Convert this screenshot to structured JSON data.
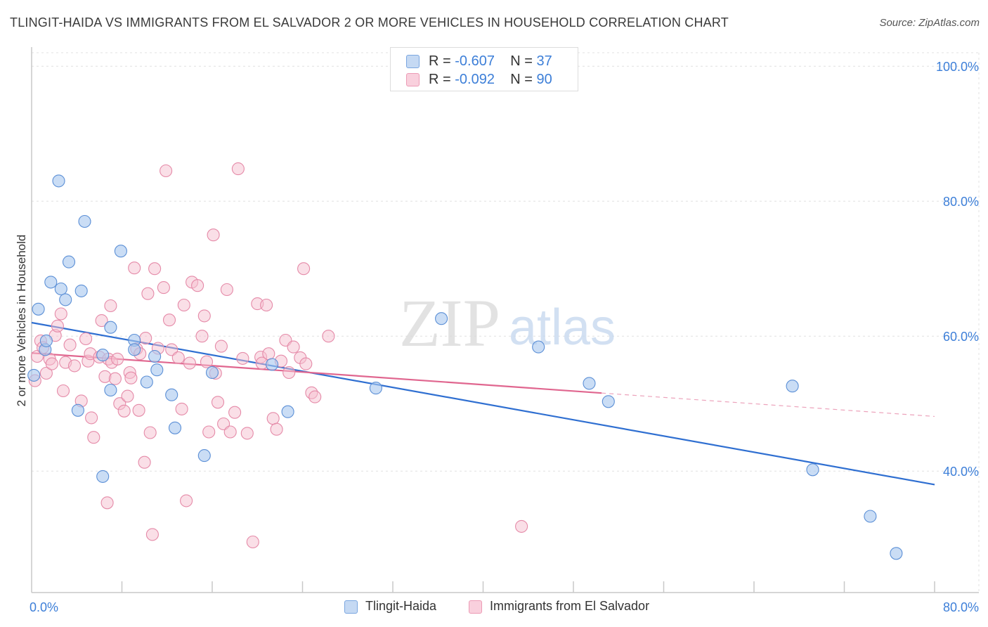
{
  "title": "TLINGIT-HAIDA VS IMMIGRANTS FROM EL SALVADOR 2 OR MORE VEHICLES IN HOUSEHOLD CORRELATION CHART",
  "source": "Source: ZipAtlas.com",
  "watermark": {
    "zip": "ZIP",
    "atlas": "atlas"
  },
  "legend": {
    "r_label": "R =",
    "n_label": "N =",
    "rows": [
      {
        "name": "Tlingit-Haida",
        "r": "-0.607",
        "n": "37"
      },
      {
        "name": "Immigrants from El Salvador",
        "r": "-0.092",
        "n": "90"
      }
    ]
  },
  "colors": {
    "blue_fill": "#a9c8ef",
    "blue_stroke": "#5b8fd6",
    "blue_line": "#2f6fd1",
    "pink_fill": "#f6bfd0",
    "pink_stroke": "#e58aa8",
    "pink_line": "#e0668f",
    "tick_label": "#3d7fd8"
  },
  "chart_data": {
    "type": "scatter",
    "title": "TLINGIT-HAIDA VS IMMIGRANTS FROM EL SALVADOR 2 OR MORE VEHICLES IN HOUSEHOLD CORRELATION CHART",
    "xlabel": "",
    "ylabel": "2 or more Vehicles in Household",
    "xlim": [
      0,
      80
    ],
    "ylim": [
      22,
      102
    ],
    "x_tick_labels": [
      {
        "value": 0,
        "label": "0.0%"
      },
      {
        "value": 80,
        "label": "80.0%"
      }
    ],
    "x_minor_ticks": [
      8,
      16,
      24,
      32,
      40,
      48,
      56,
      64,
      72,
      80
    ],
    "y_ticks": [
      {
        "value": 100,
        "label": "100.0%"
      },
      {
        "value": 80,
        "label": "80.0%"
      },
      {
        "value": 60,
        "label": "60.0%"
      },
      {
        "value": 40,
        "label": "40.0%"
      }
    ],
    "series": [
      {
        "name": "Tlingit-Haida",
        "color": "blue",
        "r": -0.607,
        "n": 37,
        "trend": {
          "x0": 0,
          "y0": 62.0,
          "x1": 80,
          "y1": 38.0,
          "solid_to": 80
        },
        "points": [
          [
            0.2,
            54.2
          ],
          [
            0.6,
            64.0
          ],
          [
            1.2,
            58.0
          ],
          [
            1.3,
            59.3
          ],
          [
            1.7,
            68.0
          ],
          [
            2.4,
            83.0
          ],
          [
            2.6,
            67.0
          ],
          [
            3.0,
            65.4
          ],
          [
            3.3,
            71.0
          ],
          [
            4.1,
            49.0
          ],
          [
            4.4,
            66.7
          ],
          [
            4.7,
            77.0
          ],
          [
            6.3,
            57.2
          ],
          [
            6.3,
            39.2
          ],
          [
            7.0,
            52.0
          ],
          [
            7.0,
            61.3
          ],
          [
            7.9,
            72.6
          ],
          [
            9.1,
            59.4
          ],
          [
            9.1,
            58.0
          ],
          [
            10.2,
            53.2
          ],
          [
            10.9,
            57.0
          ],
          [
            11.1,
            55.0
          ],
          [
            12.4,
            51.3
          ],
          [
            12.7,
            46.4
          ],
          [
            15.3,
            42.3
          ],
          [
            16.0,
            54.6
          ],
          [
            21.3,
            55.8
          ],
          [
            22.7,
            48.8
          ],
          [
            30.5,
            52.3
          ],
          [
            36.3,
            62.6
          ],
          [
            44.9,
            58.4
          ],
          [
            49.4,
            53.0
          ],
          [
            51.1,
            50.3
          ],
          [
            67.4,
            52.6
          ],
          [
            69.2,
            40.2
          ],
          [
            74.3,
            33.3
          ],
          [
            76.6,
            27.8
          ]
        ]
      },
      {
        "name": "Immigrants from El Salvador",
        "color": "pink",
        "r": -0.092,
        "n": 90,
        "trend": {
          "x0": 0,
          "y0": 57.5,
          "x1": 80,
          "y1": 48.1,
          "solid_to": 50.5
        },
        "points": [
          [
            0.3,
            53.4
          ],
          [
            0.5,
            57.0
          ],
          [
            0.8,
            59.3
          ],
          [
            1.0,
            58.3
          ],
          [
            1.3,
            54.5
          ],
          [
            1.6,
            56.6
          ],
          [
            1.8,
            55.9
          ],
          [
            2.1,
            60.1
          ],
          [
            2.3,
            61.5
          ],
          [
            2.6,
            63.3
          ],
          [
            2.8,
            51.9
          ],
          [
            3.0,
            56.1
          ],
          [
            3.4,
            58.7
          ],
          [
            3.8,
            55.6
          ],
          [
            4.4,
            50.4
          ],
          [
            4.8,
            59.6
          ],
          [
            5.0,
            56.3
          ],
          [
            5.2,
            57.4
          ],
          [
            5.3,
            47.9
          ],
          [
            5.5,
            45.0
          ],
          [
            6.0,
            56.9
          ],
          [
            6.2,
            62.3
          ],
          [
            6.5,
            54.0
          ],
          [
            6.7,
            35.3
          ],
          [
            6.8,
            56.6
          ],
          [
            7.0,
            64.5
          ],
          [
            7.1,
            56.1
          ],
          [
            7.4,
            53.7
          ],
          [
            7.6,
            56.6
          ],
          [
            7.8,
            50.0
          ],
          [
            8.2,
            48.9
          ],
          [
            8.5,
            51.1
          ],
          [
            8.7,
            54.6
          ],
          [
            8.8,
            53.8
          ],
          [
            9.1,
            70.1
          ],
          [
            9.3,
            58.1
          ],
          [
            9.5,
            49.0
          ],
          [
            9.6,
            57.4
          ],
          [
            10.0,
            41.3
          ],
          [
            10.1,
            59.7
          ],
          [
            10.3,
            66.3
          ],
          [
            10.5,
            45.7
          ],
          [
            10.7,
            30.6
          ],
          [
            10.9,
            70.0
          ],
          [
            11.2,
            58.2
          ],
          [
            11.7,
            67.2
          ],
          [
            11.9,
            84.5
          ],
          [
            12.2,
            62.4
          ],
          [
            12.4,
            58.0
          ],
          [
            13.0,
            56.8
          ],
          [
            13.3,
            49.2
          ],
          [
            13.5,
            64.6
          ],
          [
            13.7,
            35.6
          ],
          [
            14.0,
            56.0
          ],
          [
            14.2,
            68.0
          ],
          [
            14.7,
            67.5
          ],
          [
            15.1,
            60.0
          ],
          [
            15.3,
            63.0
          ],
          [
            15.5,
            56.2
          ],
          [
            15.7,
            45.8
          ],
          [
            16.1,
            75.0
          ],
          [
            16.3,
            54.5
          ],
          [
            16.5,
            50.2
          ],
          [
            16.8,
            58.5
          ],
          [
            17.0,
            47.0
          ],
          [
            17.3,
            66.9
          ],
          [
            17.6,
            45.8
          ],
          [
            18.0,
            48.7
          ],
          [
            18.3,
            84.8
          ],
          [
            18.7,
            56.7
          ],
          [
            19.1,
            45.6
          ],
          [
            19.6,
            29.5
          ],
          [
            20.0,
            64.8
          ],
          [
            20.3,
            56.9
          ],
          [
            20.4,
            56.0
          ],
          [
            20.8,
            64.6
          ],
          [
            21.0,
            57.4
          ],
          [
            21.4,
            47.8
          ],
          [
            21.7,
            46.2
          ],
          [
            22.1,
            56.3
          ],
          [
            22.5,
            59.4
          ],
          [
            22.8,
            54.6
          ],
          [
            23.2,
            58.4
          ],
          [
            23.8,
            56.8
          ],
          [
            24.1,
            70.0
          ],
          [
            24.3,
            55.9
          ],
          [
            24.8,
            51.6
          ],
          [
            25.1,
            51.0
          ],
          [
            26.3,
            60.0
          ],
          [
            43.4,
            31.8
          ]
        ]
      }
    ]
  }
}
